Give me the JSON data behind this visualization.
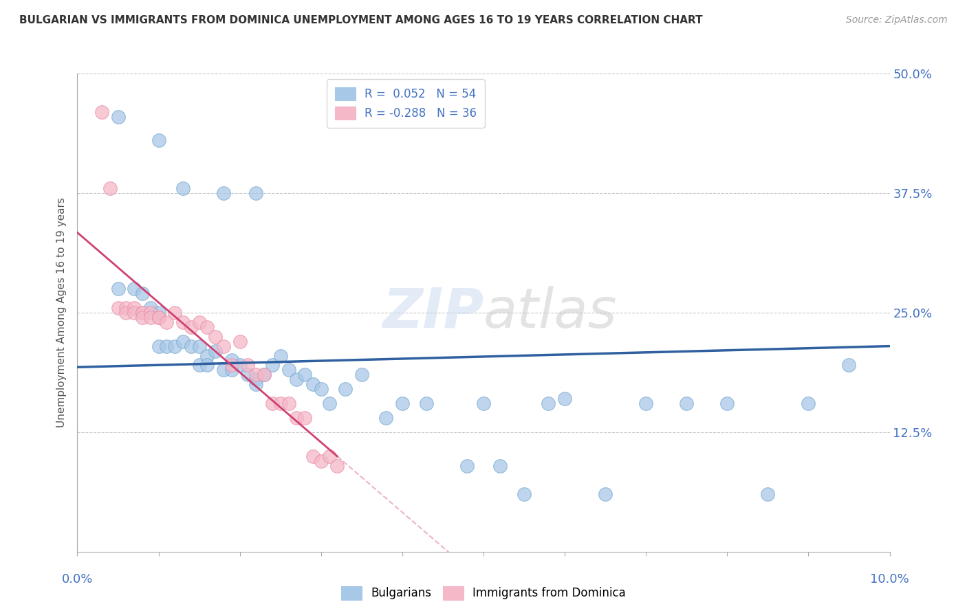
{
  "title": "BULGARIAN VS IMMIGRANTS FROM DOMINICA UNEMPLOYMENT AMONG AGES 16 TO 19 YEARS CORRELATION CHART",
  "source": "Source: ZipAtlas.com",
  "ylabel": "Unemployment Among Ages 16 to 19 years",
  "xlim": [
    0.0,
    0.1
  ],
  "ylim": [
    0.0,
    0.5
  ],
  "yticks": [
    0.0,
    0.125,
    0.25,
    0.375,
    0.5
  ],
  "ytick_labels": [
    "",
    "12.5%",
    "25.0%",
    "37.5%",
    "50.0%"
  ],
  "legend1_R": "0.052",
  "legend1_N": "54",
  "legend2_R": "-0.288",
  "legend2_N": "36",
  "blue_color": "#a8c8e8",
  "pink_color": "#f4b8c8",
  "blue_line_color": "#3060a0",
  "pink_line_solid_color": "#d04070",
  "pink_line_dash_color": "#e8a0b8",
  "bulgarian_x": [
    0.005,
    0.01,
    0.013,
    0.018,
    0.022,
    0.005,
    0.007,
    0.008,
    0.009,
    0.01,
    0.01,
    0.011,
    0.012,
    0.013,
    0.014,
    0.015,
    0.015,
    0.016,
    0.016,
    0.017,
    0.018,
    0.019,
    0.019,
    0.02,
    0.021,
    0.022,
    0.022,
    0.023,
    0.024,
    0.025,
    0.026,
    0.027,
    0.028,
    0.029,
    0.03,
    0.031,
    0.033,
    0.035,
    0.038,
    0.04,
    0.043,
    0.048,
    0.05,
    0.052,
    0.055,
    0.058,
    0.06,
    0.065,
    0.07,
    0.075,
    0.08,
    0.085,
    0.09,
    0.095
  ],
  "bulgarian_y": [
    0.455,
    0.43,
    0.38,
    0.375,
    0.375,
    0.275,
    0.275,
    0.27,
    0.255,
    0.25,
    0.215,
    0.215,
    0.215,
    0.22,
    0.215,
    0.195,
    0.215,
    0.205,
    0.195,
    0.21,
    0.19,
    0.19,
    0.2,
    0.195,
    0.185,
    0.18,
    0.175,
    0.185,
    0.195,
    0.205,
    0.19,
    0.18,
    0.185,
    0.175,
    0.17,
    0.155,
    0.17,
    0.185,
    0.14,
    0.155,
    0.155,
    0.09,
    0.155,
    0.09,
    0.06,
    0.155,
    0.16,
    0.06,
    0.155,
    0.155,
    0.155,
    0.06,
    0.155,
    0.195
  ],
  "dominica_x": [
    0.003,
    0.004,
    0.005,
    0.006,
    0.006,
    0.007,
    0.007,
    0.008,
    0.008,
    0.008,
    0.009,
    0.009,
    0.01,
    0.01,
    0.011,
    0.012,
    0.013,
    0.014,
    0.015,
    0.016,
    0.017,
    0.018,
    0.019,
    0.02,
    0.021,
    0.022,
    0.023,
    0.024,
    0.025,
    0.026,
    0.027,
    0.028,
    0.029,
    0.03,
    0.031,
    0.032
  ],
  "dominica_y": [
    0.46,
    0.38,
    0.255,
    0.255,
    0.25,
    0.255,
    0.25,
    0.25,
    0.25,
    0.245,
    0.25,
    0.245,
    0.245,
    0.245,
    0.24,
    0.25,
    0.24,
    0.235,
    0.24,
    0.235,
    0.225,
    0.215,
    0.195,
    0.22,
    0.195,
    0.185,
    0.185,
    0.155,
    0.155,
    0.155,
    0.14,
    0.14,
    0.1,
    0.095,
    0.1,
    0.09
  ]
}
